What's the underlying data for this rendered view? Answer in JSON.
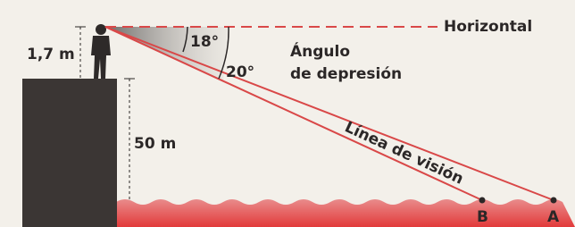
{
  "horizontal_label": "Horizontal",
  "observer_height": "1,7 m",
  "cliff_height": "50 m",
  "angles": [
    "18°",
    "20°"
  ],
  "angle_label": [
    "Ángulo",
    "de depresión"
  ],
  "sight_line_label": "Línea de visión",
  "points": [
    "B",
    "A"
  ]
}
